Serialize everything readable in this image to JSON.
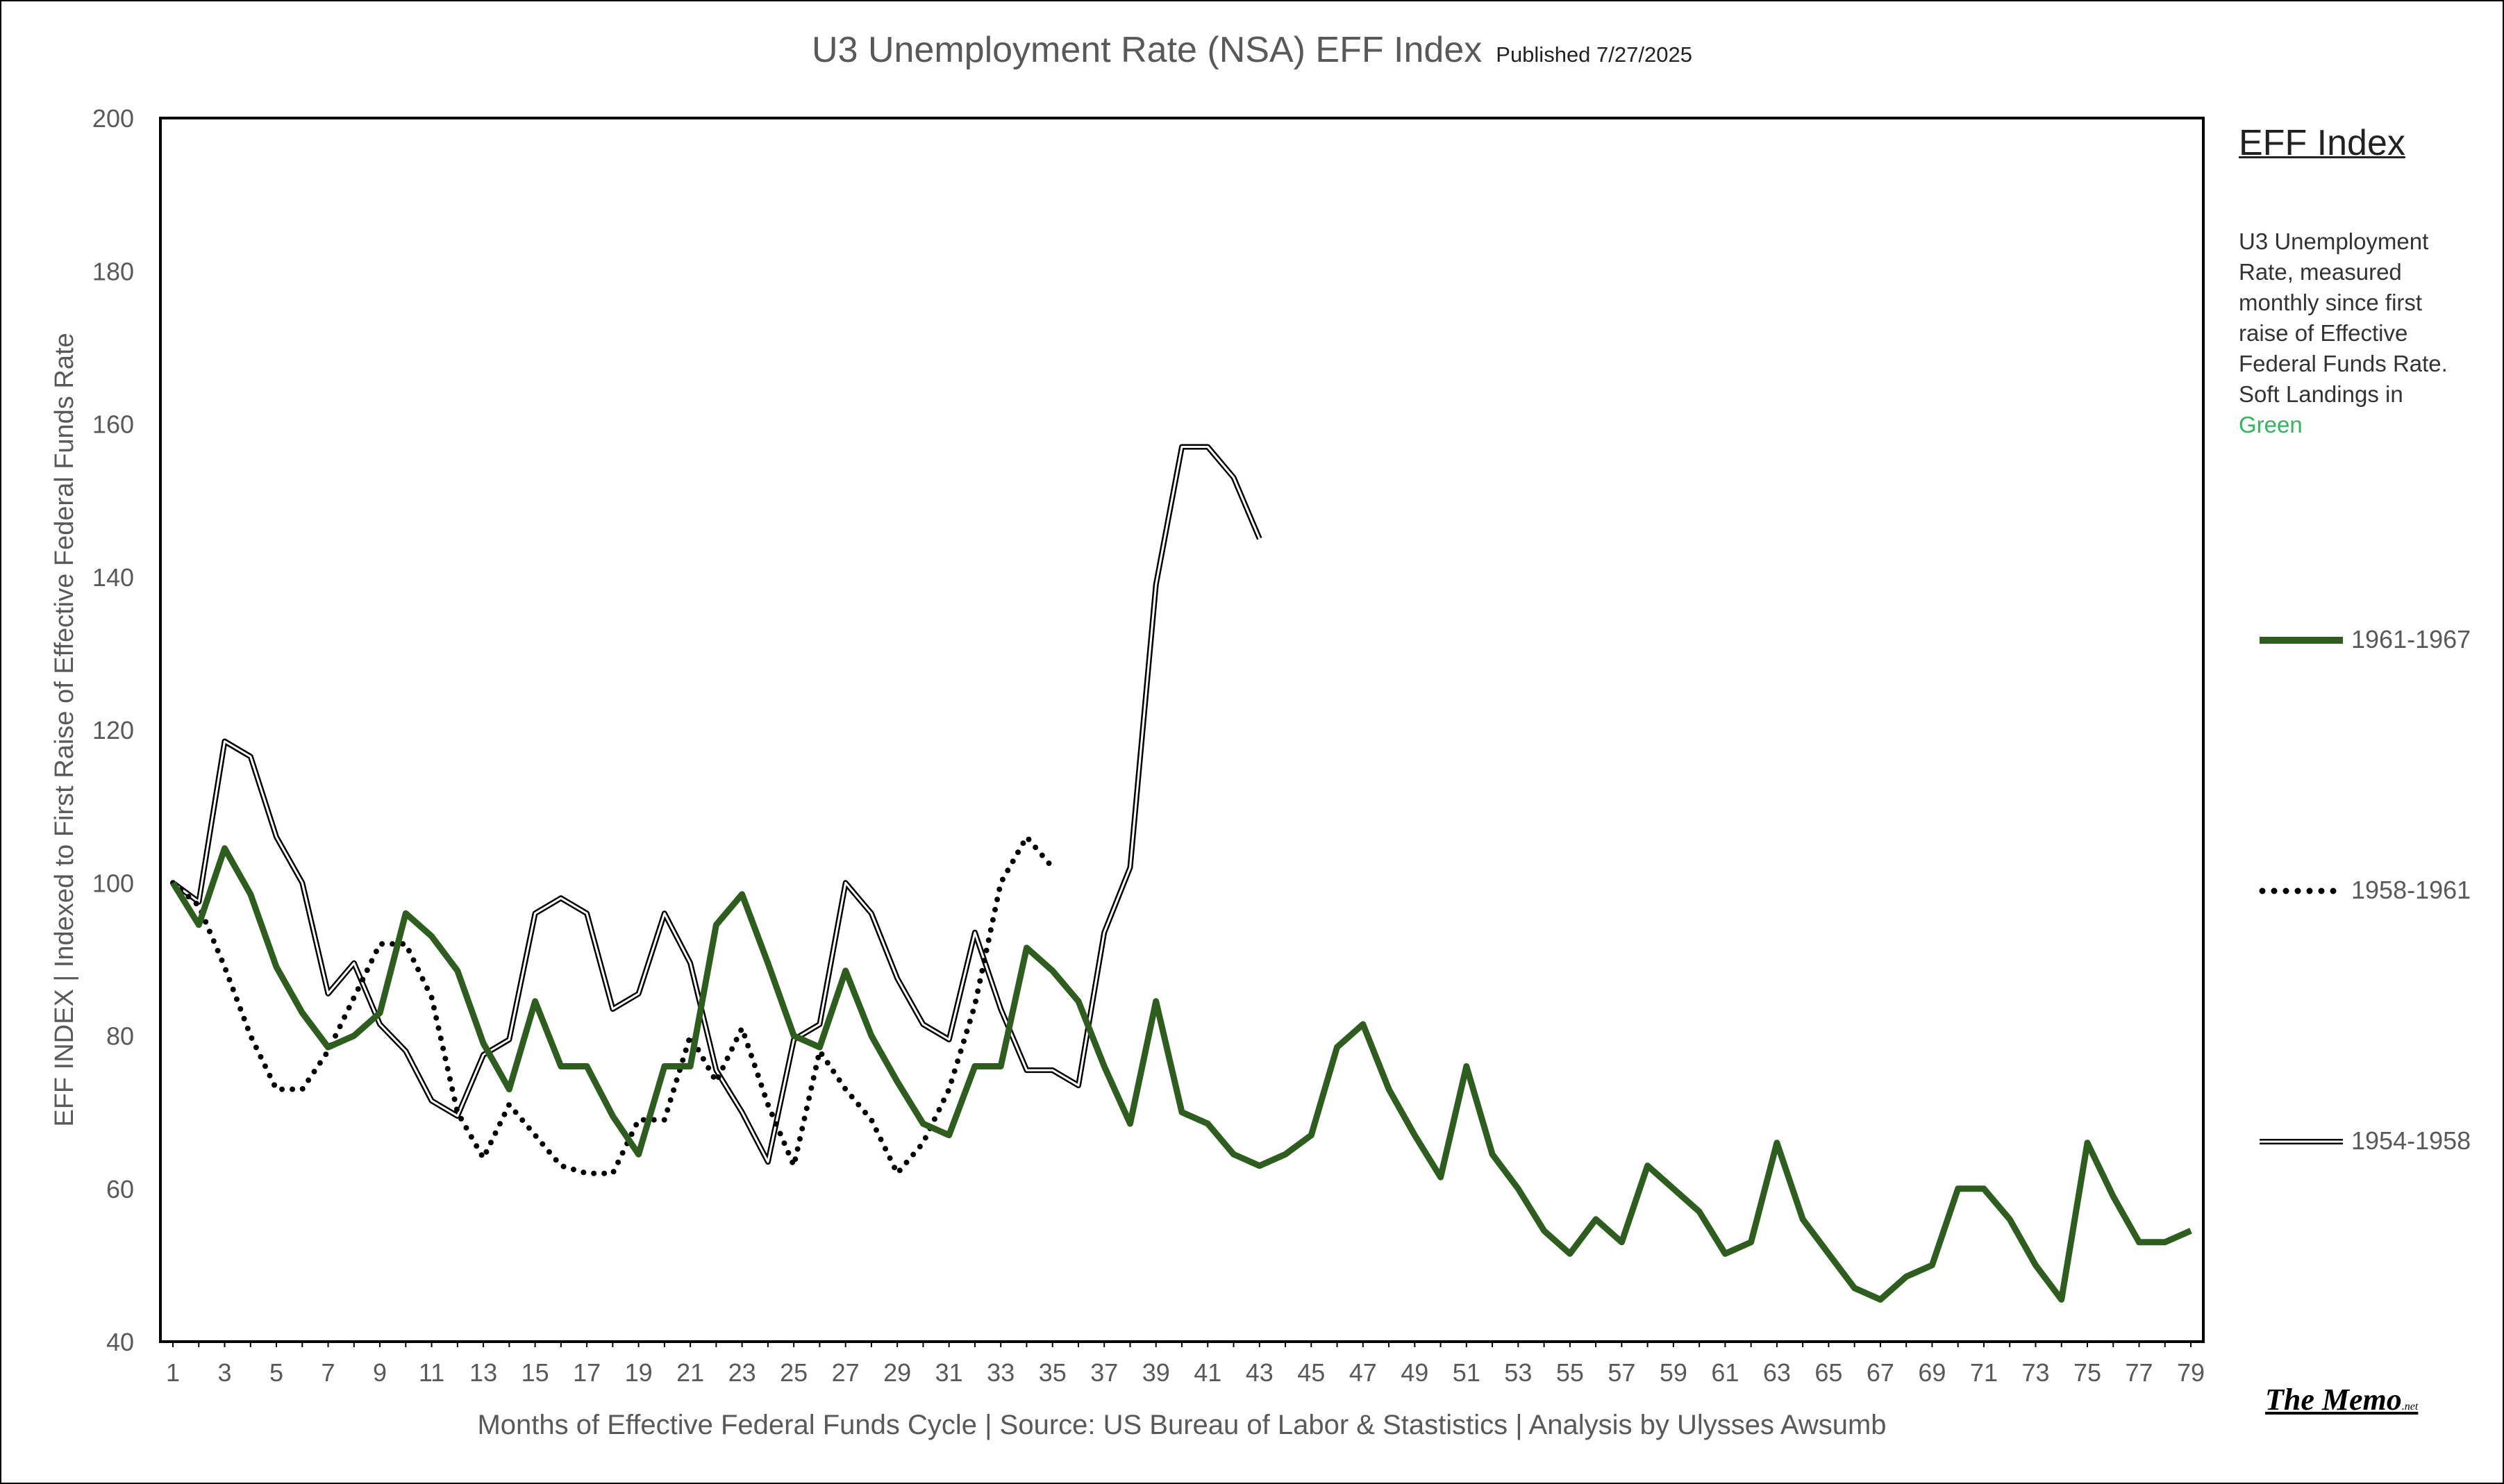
{
  "title": "U3 Unemployment Rate (NSA) EFF Index",
  "published": "Published 7/27/2025",
  "legend": {
    "heading": "EFF Index",
    "note": "U3 Unemployment Rate, measured monthly since first raise of Effective Federal Funds Rate. Soft Landings in",
    "note_highlight": "Green",
    "series_labels": [
      "1961-1967",
      "1958-1961",
      "1954-1958"
    ]
  },
  "brand": "The Memo",
  "brand_suffix": ".net",
  "colors": {
    "green": "#2d5e1e",
    "green_text": "#2eb85c",
    "black": "#000000",
    "axis_text": "#595959"
  },
  "chart_data": {
    "type": "line",
    "xlabel": "Months of Effective Federal Funds Cycle | Source: US Bureau of Labor & Stastistics | Analysis by Ulysses Awsumb",
    "ylabel": "EFF INDEX | Indexed to First Raise of Effective Federal Funds Rate",
    "xlim": [
      1,
      79
    ],
    "ylim": [
      40,
      200
    ],
    "yticks": [
      40,
      60,
      80,
      100,
      120,
      140,
      160,
      180,
      200
    ],
    "xticks": [
      1,
      3,
      5,
      7,
      9,
      11,
      13,
      15,
      17,
      19,
      21,
      23,
      25,
      27,
      29,
      31,
      33,
      35,
      37,
      39,
      41,
      43,
      45,
      47,
      49,
      51,
      53,
      55,
      57,
      59,
      61,
      63,
      65,
      67,
      69,
      71,
      73,
      75,
      77,
      79
    ],
    "grid": false,
    "legend_position": "right",
    "series": [
      {
        "name": "1961-1967",
        "style": "solid-thick",
        "color": "#2d5e1e",
        "start_x": 1,
        "values": [
          100,
          94.5,
          104.5,
          98.5,
          89,
          83,
          78.5,
          80,
          83,
          96,
          93,
          88.5,
          79,
          73,
          84.5,
          76,
          76,
          69.5,
          64.5,
          76,
          76,
          94.5,
          98.5,
          89.5,
          80,
          78.5,
          88.5,
          80,
          74,
          68.5,
          67,
          76,
          76,
          91.5,
          88.5,
          84.5,
          76,
          68.5,
          84.5,
          70,
          68.5,
          64.5,
          63,
          64.5,
          67,
          78.5,
          81.5,
          73,
          67,
          61.5,
          76,
          64.5,
          60,
          54.5,
          51.5,
          56,
          53,
          63,
          60,
          57,
          51.5,
          53,
          66,
          56,
          51.5,
          47,
          45.5,
          48.5,
          50,
          60,
          60,
          56,
          50,
          45.5,
          66,
          59,
          53,
          53,
          54.5
        ]
      },
      {
        "name": "1958-1961",
        "style": "dotted",
        "color": "#000000",
        "start_x": 1,
        "values": [
          100,
          97,
          89,
          80,
          73,
          73,
          78,
          85,
          92,
          92,
          85,
          70,
          64,
          71,
          67,
          63,
          62,
          62,
          69,
          69,
          80,
          74,
          81,
          71,
          63,
          78,
          73,
          69,
          62,
          66,
          73,
          84,
          100,
          106,
          102
        ]
      },
      {
        "name": "1954-1958",
        "style": "double",
        "color": "#000000",
        "start_x": 1,
        "values": [
          100,
          97.5,
          118.5,
          116.5,
          106,
          100,
          85.5,
          89.5,
          81.5,
          78,
          71.5,
          69.5,
          77.5,
          79.5,
          96,
          98,
          96,
          83.5,
          85.5,
          96,
          89.5,
          75.5,
          70,
          63.5,
          79.5,
          81.5,
          100,
          96,
          87.5,
          81.5,
          79.5,
          93.5,
          83.5,
          75.5,
          75.5,
          73.5,
          93.5,
          102,
          139,
          157,
          157,
          153,
          145
        ]
      }
    ]
  }
}
